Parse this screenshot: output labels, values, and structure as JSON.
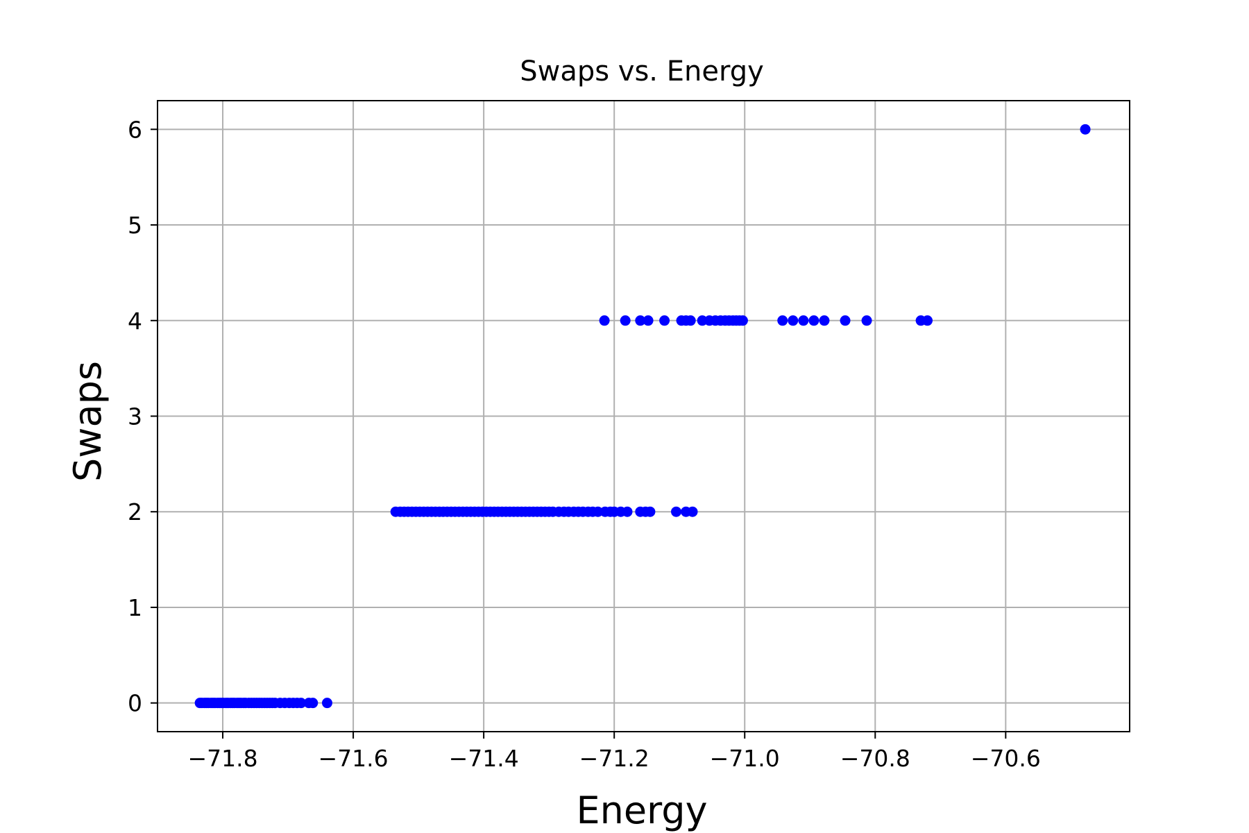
{
  "chart_data": {
    "type": "scatter",
    "title": "Swaps vs. Energy",
    "xlabel": "Energy",
    "ylabel": "Swaps",
    "xlim": [
      -71.9,
      -70.41
    ],
    "ylim": [
      -0.3,
      6.3
    ],
    "xticks": [
      -71.8,
      -71.6,
      -71.4,
      -71.2,
      -71.0,
      -70.8,
      -70.6
    ],
    "xtick_labels": [
      "−71.8",
      "−71.6",
      "−71.4",
      "−71.2",
      "−71.0",
      "−70.8",
      "−70.6"
    ],
    "yticks": [
      0,
      1,
      2,
      3,
      4,
      5,
      6
    ],
    "ytick_labels": [
      "0",
      "1",
      "2",
      "3",
      "4",
      "5",
      "6"
    ],
    "grid": true,
    "marker_color": "#0000ff",
    "series": [
      {
        "x": [
          -71.835,
          -71.832,
          -71.828,
          -71.825,
          -71.822,
          -71.818,
          -71.815,
          -71.812,
          -71.808,
          -71.805,
          -71.802,
          -71.799,
          -71.795,
          -71.792,
          -71.788,
          -71.785,
          -71.782,
          -71.778,
          -71.775,
          -71.772,
          -71.768,
          -71.765,
          -71.76,
          -71.756,
          -71.752,
          -71.748,
          -71.744,
          -71.74,
          -71.736,
          -71.732,
          -71.728,
          -71.724,
          -71.72,
          -71.712,
          -71.705,
          -71.698,
          -71.692,
          -71.686,
          -71.68,
          -71.668,
          -71.662,
          -71.64,
          -71.535,
          -71.528,
          -71.522,
          -71.516,
          -71.51,
          -71.504,
          -71.498,
          -71.492,
          -71.486,
          -71.48,
          -71.474,
          -71.468,
          -71.462,
          -71.456,
          -71.45,
          -71.444,
          -71.438,
          -71.432,
          -71.426,
          -71.42,
          -71.414,
          -71.408,
          -71.402,
          -71.396,
          -71.39,
          -71.384,
          -71.378,
          -71.372,
          -71.366,
          -71.36,
          -71.354,
          -71.348,
          -71.342,
          -71.336,
          -71.33,
          -71.324,
          -71.318,
          -71.312,
          -71.306,
          -71.3,
          -71.294,
          -71.285,
          -71.277,
          -71.27,
          -71.262,
          -71.255,
          -71.248,
          -71.24,
          -71.233,
          -71.225,
          -71.214,
          -71.206,
          -71.2,
          -71.19,
          -71.18,
          -71.16,
          -71.152,
          -71.145,
          -71.105,
          -71.09,
          -71.08,
          -71.215,
          -71.183,
          -71.16,
          -71.148,
          -71.123,
          -71.097,
          -71.09,
          -71.083,
          -71.065,
          -71.054,
          -71.045,
          -71.037,
          -71.03,
          -71.024,
          -71.018,
          -71.013,
          -71.008,
          -71.003,
          -70.942,
          -70.926,
          -70.91,
          -70.894,
          -70.878,
          -70.846,
          -70.813,
          -70.73,
          -70.72,
          -70.478
        ],
        "y": [
          0,
          0,
          0,
          0,
          0,
          0,
          0,
          0,
          0,
          0,
          0,
          0,
          0,
          0,
          0,
          0,
          0,
          0,
          0,
          0,
          0,
          0,
          0,
          0,
          0,
          0,
          0,
          0,
          0,
          0,
          0,
          0,
          0,
          0,
          0,
          0,
          0,
          0,
          0,
          0,
          0,
          0,
          2,
          2,
          2,
          2,
          2,
          2,
          2,
          2,
          2,
          2,
          2,
          2,
          2,
          2,
          2,
          2,
          2,
          2,
          2,
          2,
          2,
          2,
          2,
          2,
          2,
          2,
          2,
          2,
          2,
          2,
          2,
          2,
          2,
          2,
          2,
          2,
          2,
          2,
          2,
          2,
          2,
          2,
          2,
          2,
          2,
          2,
          2,
          2,
          2,
          2,
          2,
          2,
          2,
          2,
          2,
          2,
          2,
          2,
          2,
          2,
          2,
          4,
          4,
          4,
          4,
          4,
          4,
          4,
          4,
          4,
          4,
          4,
          4,
          4,
          4,
          4,
          4,
          4,
          4,
          4,
          4,
          4,
          4,
          4,
          4,
          4,
          4,
          4,
          6
        ]
      }
    ]
  }
}
